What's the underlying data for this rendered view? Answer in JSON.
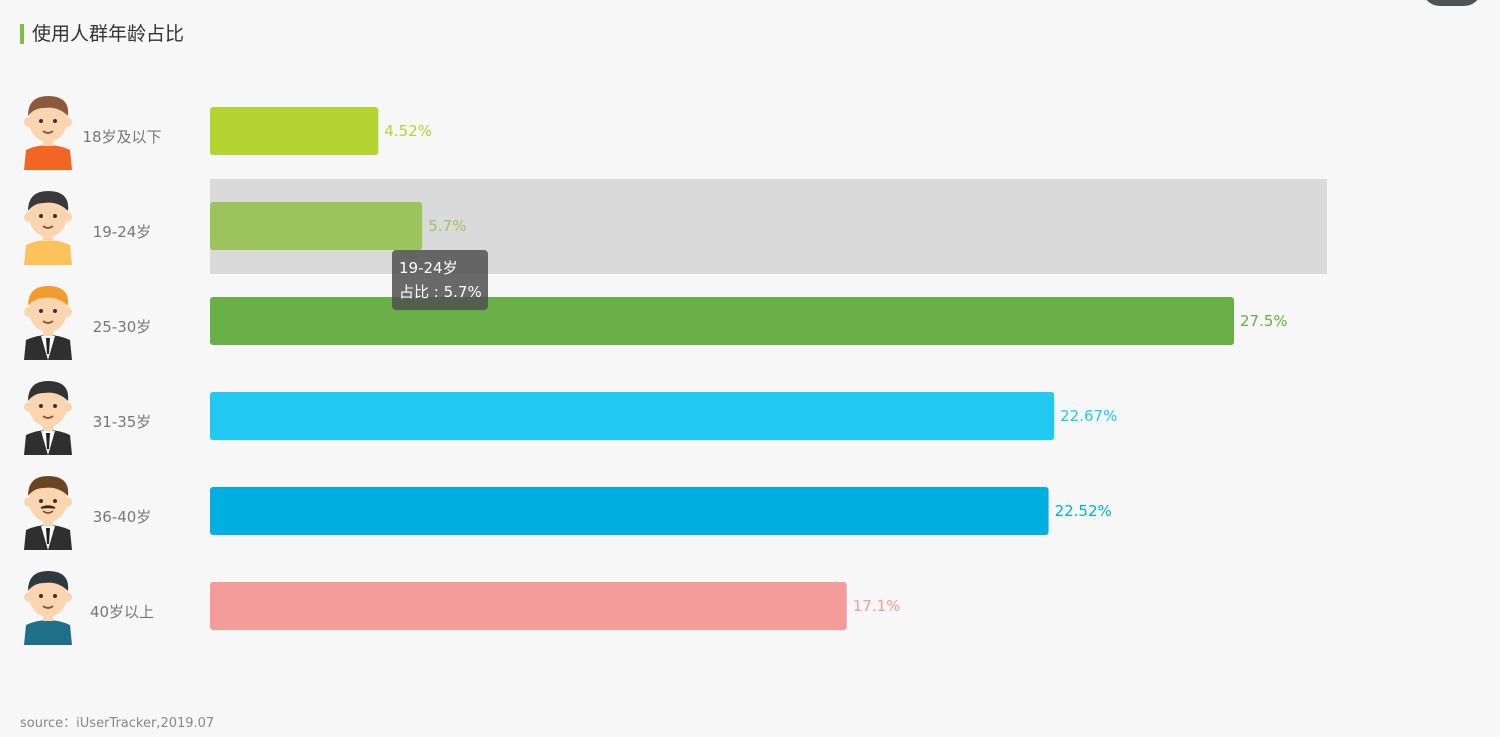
{
  "title": {
    "text": "使用人群年龄占比",
    "accent_color": "#7bc142"
  },
  "chart_data": {
    "type": "bar",
    "orientation": "horizontal",
    "categories": [
      "18岁及以下",
      "19-24岁",
      "25-30岁",
      "31-35岁",
      "36-40岁",
      "40岁以上"
    ],
    "values": [
      4.52,
      5.7,
      27.5,
      22.67,
      22.52,
      17.1
    ],
    "value_labels": [
      "4.52%",
      "5.7%",
      "27.5%",
      "22.67%",
      "22.52%",
      "17.1%"
    ],
    "colors": [
      "#b5d431",
      "#9cc45c",
      "#68b046",
      "#20c8f2",
      "#00afe0",
      "#f49c9a"
    ],
    "xlim": [
      0,
      30
    ],
    "highlighted_index": 1,
    "highlight_color": "#dadada",
    "avatars": [
      "boy-avatar-icon",
      "young-man-avatar-icon",
      "man-suit-avatar-icon",
      "businessman-avatar-icon",
      "mustache-man-avatar-icon",
      "older-man-avatar-icon"
    ],
    "grid": false,
    "legend": "none"
  },
  "tooltip": {
    "line1": "19-24岁",
    "line2": "占比 : 5.7%"
  },
  "source": "source：iUserTracker,2019.07"
}
